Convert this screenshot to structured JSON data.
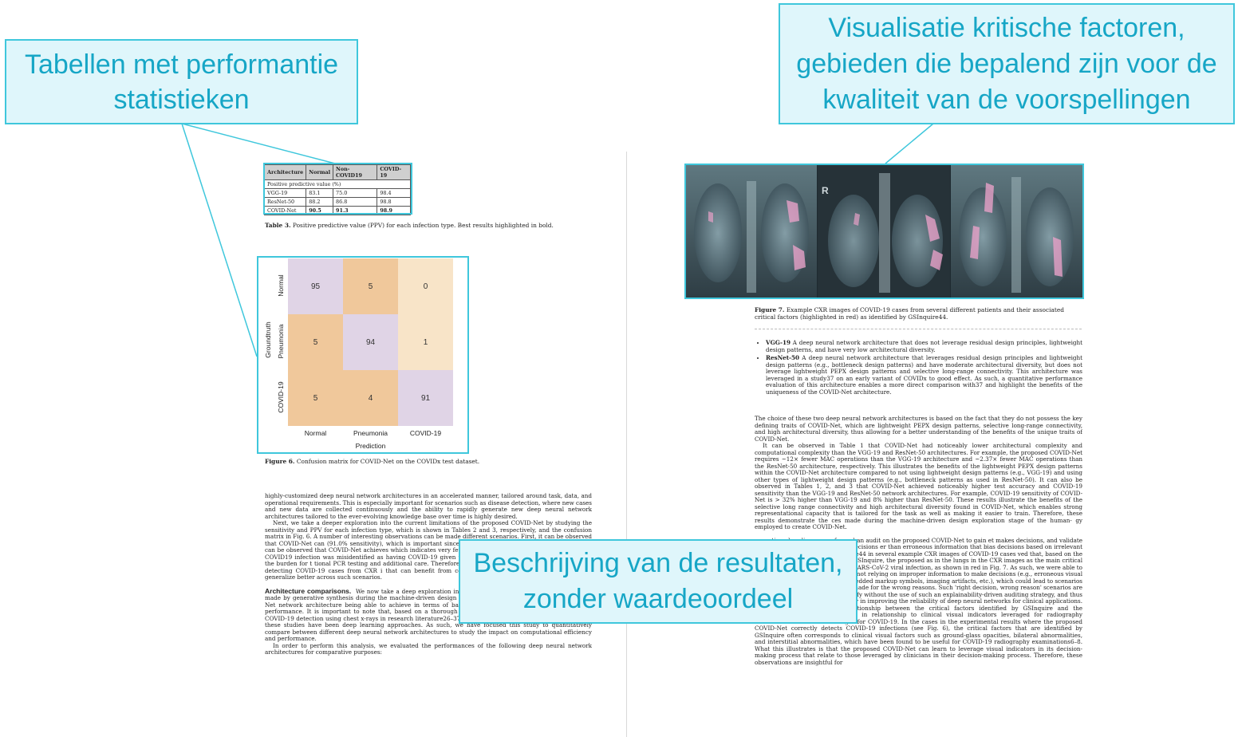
{
  "callouts": {
    "tables": [
      "Tabellen met performantie",
      "statistieken"
    ],
    "visualisation": [
      "Visualisatie kritische factoren,",
      "gebieden die bepalend zijn voor de",
      "kwaliteit van de voorspellingen"
    ],
    "results": [
      "Beschrijving van de resultaten,",
      "zonder waardeoordeel"
    ]
  },
  "table3": {
    "headers": [
      "Architecture",
      "Normal",
      "Non-COVID19",
      "COVID-19"
    ],
    "section": "Positive predictive value (%)",
    "rows": [
      [
        "VGG-19",
        "83.1",
        "75.0",
        "98.4"
      ],
      [
        "ResNet-50",
        "88.2",
        "86.8",
        "98.8"
      ],
      [
        "COVID-Net",
        "90.5",
        "91.3",
        "98.9"
      ]
    ],
    "caption_label": "Table 3.",
    "caption_text": "Positive predictive value (PPV) for each infection type.  Best results highlighted in bold."
  },
  "confusion": {
    "row_labels": [
      "Normal",
      "Pneumonia",
      "COVID-19"
    ],
    "col_labels": [
      "Normal",
      "Pneumonia",
      "COVID-19"
    ],
    "y_title": "Groundtruth",
    "x_title": "Prediction",
    "cells": [
      [
        "95",
        "5",
        "0"
      ],
      [
        "5",
        "94",
        "1"
      ],
      [
        "5",
        "4",
        "91"
      ]
    ],
    "caption_label": "Figure 6.",
    "caption_text": "Confusion matrix for COVID-Net on the COVIDx test dataset."
  },
  "left_text": {
    "p1": "highly-customized deep neural network architectures in an accelerated manner, tailored around task, data, and operational requirements. This is especially important for scenarios such as disease detection, where new cases and new data are collected continuously and the ability to rapidly generate new deep neural network architectures tailored to the ever-evolving knowledge base over time is highly desired.",
    "p2": "Next, we take a deeper exploration into the current limitations of the proposed COVID-Net by studying the sensitivity and PPV for each infection type, which is shown in Tables 2 and 3, respectively, and the confusion matrix in Fig. 6. A number of interesting observations can be made different scenarios. First, it can be observed that COVID-Net can (91.0% sensitivity), which is important since we want to limit the as possible. Second, it can be observed that COVID-Net achieves which indicates very few false positive COVID-19 detections (fo non-COVID19 infection was misidentified as having COVID-19 given that too many false positives would increase the burden for t tional PCR testing and additional care. Therefore, based on these performs well as a whole in detecting COVID-19 cases from CXR i that can benefit from collecting additional data, as well as improv generalize better across such scenarios.",
    "heading": "Architecture comparisons.",
    "p3": "We now take a deep exploration into the impact of architectural design choices made by generative synthesis during the machine-driven design exploration process on the resulting COVID-Net network architecture being able to achieve in terms of balance between computational efficiency and performance. It is important to note that, based on a thorough survey of all machine learning methods for COVID-19 detection using chest x-rays in research literature26–37, the machine learning methods leveraged in these studies have been deep learning approaches. As such, we have focused this study to quantitatively compare between different deep neural network architectures to study the impact on computational efficiency and performance.",
    "p4": "In order to perform this analysis, we evaluated the performances of the following deep neural network architectures for comparative purposes:"
  },
  "figure7": {
    "caption_label": "Figure 7.",
    "caption_text": "Example CXR images of COVID-19 cases from several different patients and their associated critical factors (highlighted in red) as identified by GSInquire44."
  },
  "right_text": {
    "bullet1_title": "VGG-19",
    "bullet1": "A deep neural network architecture that does not leverage residual design principles, lightweight design patterns, and have very low architectural diversity.",
    "bullet2_title": "ResNet-50",
    "bullet2": "A deep neural network architecture that leverages residual design principles and lightweight design patterns (e.g., bottleneck design patterns) and have moderate architectural diversity, but does not leverage lightweight PEPX design patterns and selective long-range connectivity. This architecture was leveraged in a study37 on an early variant of COVIDx to good effect. As such, a quantitative performance evaluation of this architecture enables a more direct comparison with37 and highlight the benefits of the uniqueness of the COVID-Net architecture.",
    "p1": "The choice of these two deep neural network architectures is based on the fact that they do not possess the key defining traits of COVID-Net, which are lightweight PEPX design patterns, selective long-range connectivity, and high architectural diversity, thus allowing for a better understanding of the benefits of the unique traits of COVID-Net.",
    "p2": "It can be observed in Table 1 that COVID-Net had noticeably lower architectural complexity and computational complexity than the VGG-19 and ResNet-50 architectures. For example, the proposed COVID-Net requires ~12× fewer MAC operations than the VGG-19 architecture and ~2.37× fewer MAC operations than the ResNet-50 architecture, respectively. This illustrates the benefits of the lightweight PEPX design patterns within the COVID-Net architecture compared to not using lightweight design patterns (e.g., VGG-19) and using other types of lightweight design patterns (e.g., bottleneck patterns as used in ResNet-50). It can also be observed in Tables 1, 2, and 3 that COVID-Net achieved noticeably higher test accuracy and COVID-19 sensitivity than the VGG-19 and ResNet-50 network architectures. For example, COVID-19 sensitivity of COVID-Net is > 32% higher than VGG-19 and 8% higher than ResNet-50. These results illustrate the benefits of the selective long range connectivity and high architectural diversity found in COVID-Net, which enables strong representational capacity that is tailored for the task as well as making it easier to train. Therefore, these results demonstrate the ces made during the machine-driven design exploration stage of the human- gy employed to create COVID-Net.",
    "p3": "tioned earlier, we performed an audit on the proposed COVID-Net to gain et makes decisions, and validate whether it is making detection decisions er than erroneous information that bias decisions based on irrelevant visual tified by GSInquire44 in several example CXR images of COVID-19 cases ved that, based on the interpretation produced by GSInquire, the proposed as in the lungs in the CXR images as the main critical factors in determining t with a SARS-CoV-2 viral infection, as shown in red in Fig. 7. As such, we were able to validate that COVID-Net was not relying on improper information to make decisions (e.g., erroneous visual indicators outside the body, embedded markup symbols, imaging artifacts, etc.), which could lead to scenarios where the right decisions are made for the wrong reasons. Such 'right decision, wrong reason' scenarios are very difficult to track and identify without the use of such an explainability-driven auditing strategy, and thus highlight the value of explainability in improving the reliability of deep neural networks for clinical applications.",
    "p4": "We further explored the relationship between the critical factors identified by GSInquire and the experimental results, particularly in relationship to clinical visual indicators leveraged for radiography examination of chest CXR images for COVID-19. In the cases in the experimental results where the proposed COVID-Net correctly detects COVID-19 infections (see Fig. 6), the critical factors that are identified by GSInquire often corresponds to clinical visual factors such as ground-glass opacities, bilateral abnormalities, and interstitial abnormalities, which have been found to be useful for COVID-19 radiography examinations6–8. What this illustrates is that the proposed COVID-Net can learn to leverage visual indicators in its decision-making process that relate to those leveraged by clinicians in their decision-making process. Therefore, these observations are insightful for"
  },
  "colors": {
    "accent": "#3fc7dc",
    "accent_text": "#16a6c6",
    "callout_bg": "#dff6fb",
    "cm_high": "#e0d4e6",
    "cm_mid": "#f0c89b",
    "cm_low": "#f8e4c8"
  }
}
